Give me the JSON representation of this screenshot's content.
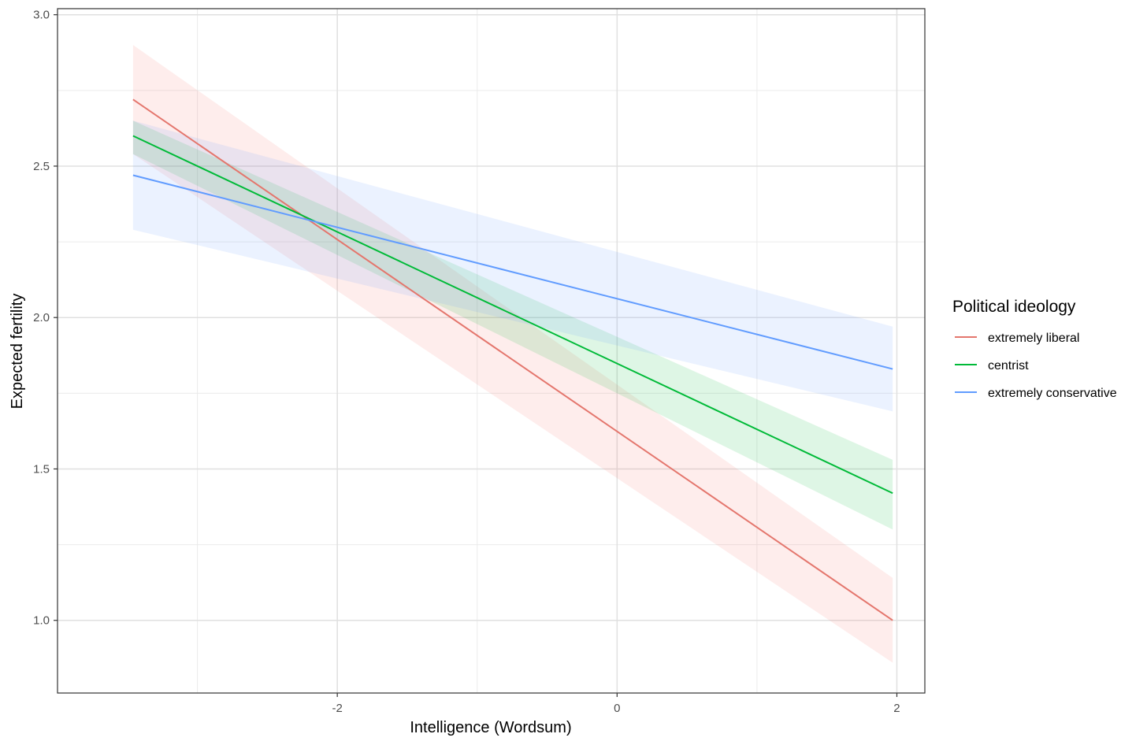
{
  "chart_data": {
    "type": "line",
    "xlabel": "Intelligence (Wordsum)",
    "ylabel": "Expected fertility",
    "xlim": [
      -4.0,
      2.2
    ],
    "ylim": [
      0.76,
      3.02
    ],
    "x_ticks": [
      -2,
      0,
      2
    ],
    "x_tick_labels": [
      "-2",
      "0",
      "2"
    ],
    "x_minor_ticks": [
      -3,
      -1,
      1
    ],
    "y_ticks": [
      1.0,
      1.5,
      2.0,
      2.5,
      3.0
    ],
    "y_tick_labels": [
      "1.0",
      "1.5",
      "2.0",
      "2.5",
      "3.0"
    ],
    "y_minor_ticks": [
      1.25,
      1.75,
      2.25,
      2.75
    ],
    "grid": true,
    "legend": {
      "title": "Political ideology",
      "placement": "right"
    },
    "series": [
      {
        "name": "extremely liberal",
        "color": "#E4766D",
        "fill": "#F8766D",
        "x": [
          -3.46,
          1.97
        ],
        "y": [
          2.72,
          1.0
        ],
        "lower": [
          2.54,
          0.86
        ],
        "upper": [
          2.9,
          1.14
        ]
      },
      {
        "name": "centrist",
        "color": "#00BA38",
        "fill": "#00BA38",
        "x": [
          -3.46,
          1.97
        ],
        "y": [
          2.6,
          1.42
        ],
        "lower": [
          2.54,
          1.3
        ],
        "upper": [
          2.65,
          1.53
        ]
      },
      {
        "name": "extremely conservative",
        "color": "#619CFF",
        "fill": "#619CFF",
        "x": [
          -3.46,
          1.97
        ],
        "y": [
          2.47,
          1.83
        ],
        "lower": [
          2.29,
          1.69
        ],
        "upper": [
          2.65,
          1.97
        ]
      }
    ]
  }
}
